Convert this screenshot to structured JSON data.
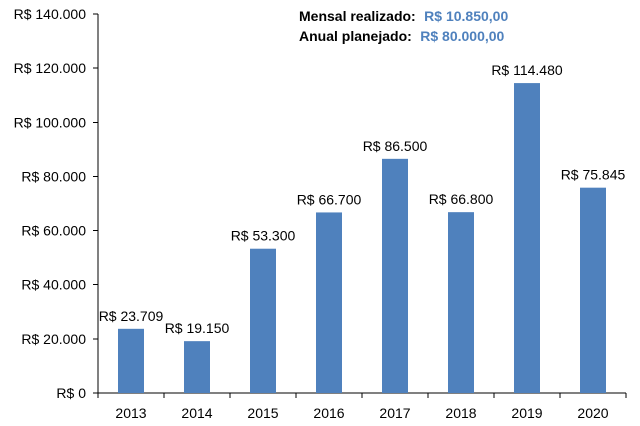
{
  "chart_data": {
    "type": "bar",
    "categories": [
      "2013",
      "2014",
      "2015",
      "2016",
      "2017",
      "2018",
      "2019",
      "2020"
    ],
    "values": [
      23709,
      19150,
      53300,
      66700,
      86500,
      66800,
      114480,
      75845
    ],
    "data_labels": [
      "R$ 23.709",
      "R$ 19.150",
      "R$ 53.300",
      "R$ 66.700",
      "R$ 86.500",
      "R$ 66.800",
      "R$ 114.480",
      "R$ 75.845"
    ],
    "ylim": [
      0,
      140000
    ],
    "yticks": [
      0,
      20000,
      40000,
      60000,
      80000,
      100000,
      120000,
      140000
    ],
    "ytick_labels": [
      "R$ 0",
      "R$ 20.000",
      "R$ 40.000",
      "R$ 60.000",
      "R$ 80.000",
      "R$ 100.000",
      "R$ 120.000",
      "R$ 140.000"
    ],
    "title": "",
    "xlabel": "",
    "ylabel": "",
    "grid": false,
    "bar_color": "#4f81bd",
    "annotations": [
      {
        "label": "Mensal realizado:",
        "value": "R$ 10.850,00"
      },
      {
        "label": "Anual planejado:",
        "value": "R$ 80.000,00"
      }
    ]
  }
}
